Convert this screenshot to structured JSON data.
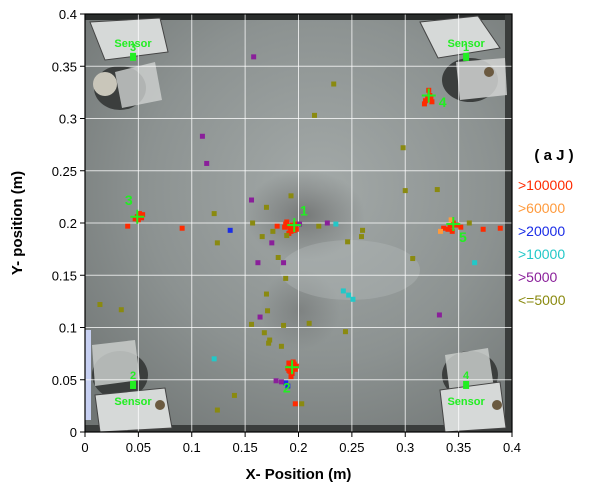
{
  "chart_data": {
    "type": "scatter",
    "xlabel": "X- Position (m)",
    "ylabel": "Y- position (m)",
    "xlim": [
      0,
      0.4
    ],
    "ylim": [
      0,
      0.4
    ],
    "grid": true,
    "x_ticks": [
      "0",
      "0.05",
      "0.1",
      "0.15",
      "0.2",
      "0.25",
      "0.3",
      "0.35",
      "0.4"
    ],
    "y_ticks": [
      "0",
      "0.05",
      "0.1",
      "0.15",
      "0.2",
      "0.25",
      "0.3",
      "0.35",
      "0.4"
    ],
    "legend": {
      "title": "( a J )",
      "placement": "right",
      "entries": [
        {
          "label": ">100000",
          "color": "#ff2a00"
        },
        {
          "label": ">60000",
          "color": "#ff9a3c"
        },
        {
          "label": ">20000",
          "color": "#1a2ce6"
        },
        {
          "label": ">10000",
          "color": "#22c8c8"
        },
        {
          "label": ">5000",
          "color": "#8a1f9a"
        },
        {
          "label": "<=5000",
          "color": "#8a8a10"
        }
      ]
    },
    "sensors": [
      {
        "label": "Sensor",
        "number": "1",
        "x": 0.357,
        "y": 0.359
      },
      {
        "label": "Sensor",
        "number": "2",
        "x": 0.045,
        "y": 0.045
      },
      {
        "label": "Sensor",
        "number": "3",
        "x": 0.045,
        "y": 0.359
      },
      {
        "label": "Sensor",
        "number": "4",
        "x": 0.357,
        "y": 0.045
      }
    ],
    "cluster_labels": [
      {
        "text": "1",
        "x": 0.205,
        "y": 0.207
      },
      {
        "text": "2",
        "x": 0.189,
        "y": 0.038
      },
      {
        "text": "3",
        "x": 0.041,
        "y": 0.217
      },
      {
        "text": "4",
        "x": 0.335,
        "y": 0.311
      },
      {
        "text": "5",
        "x": 0.354,
        "y": 0.182
      }
    ],
    "series": [
      {
        "name": ">100000",
        "color": "#ff2a00",
        "points": [
          [
            0.049,
            0.206
          ],
          [
            0.051,
            0.209
          ],
          [
            0.053,
            0.205
          ],
          [
            0.047,
            0.204
          ],
          [
            0.05,
            0.203
          ],
          [
            0.052,
            0.207
          ],
          [
            0.04,
            0.197
          ],
          [
            0.054,
            0.208
          ],
          [
            0.188,
            0.199
          ],
          [
            0.19,
            0.197
          ],
          [
            0.192,
            0.195
          ],
          [
            0.194,
            0.198
          ],
          [
            0.196,
            0.193
          ],
          [
            0.189,
            0.201
          ],
          [
            0.191,
            0.19
          ],
          [
            0.195,
            0.196
          ],
          [
            0.193,
            0.192
          ],
          [
            0.197,
            0.199
          ],
          [
            0.187,
            0.196
          ],
          [
            0.198,
            0.194
          ],
          [
            0.18,
            0.197
          ],
          [
            0.191,
            0.066
          ],
          [
            0.193,
            0.064
          ],
          [
            0.195,
            0.062
          ],
          [
            0.197,
            0.06
          ],
          [
            0.192,
            0.058
          ],
          [
            0.194,
            0.056
          ],
          [
            0.196,
            0.065
          ],
          [
            0.19,
            0.061
          ],
          [
            0.198,
            0.063
          ],
          [
            0.193,
            0.053
          ],
          [
            0.195,
            0.067
          ],
          [
            0.197,
            0.027
          ],
          [
            0.191,
            0.059
          ],
          [
            0.319,
            0.317
          ],
          [
            0.321,
            0.32
          ],
          [
            0.323,
            0.322
          ],
          [
            0.325,
            0.316
          ],
          [
            0.318,
            0.314
          ],
          [
            0.324,
            0.319
          ],
          [
            0.322,
            0.327
          ],
          [
            0.342,
            0.197
          ],
          [
            0.345,
            0.2
          ],
          [
            0.348,
            0.198
          ],
          [
            0.34,
            0.194
          ],
          [
            0.344,
            0.192
          ],
          [
            0.336,
            0.195
          ],
          [
            0.352,
            0.196
          ],
          [
            0.373,
            0.194
          ],
          [
            0.389,
            0.195
          ],
          [
            0.091,
            0.195
          ]
        ]
      },
      {
        "name": ">60000",
        "color": "#ff9a3c",
        "points": [
          [
            0.343,
            0.203
          ],
          [
            0.333,
            0.192
          ]
        ]
      },
      {
        "name": ">20000",
        "color": "#1a2ce6",
        "points": [
          [
            0.136,
            0.193
          ],
          [
            0.188,
            0.047
          ],
          [
            0.19,
            0.044
          ]
        ]
      },
      {
        "name": ">10000",
        "color": "#22c8c8",
        "points": [
          [
            0.242,
            0.135
          ],
          [
            0.247,
            0.131
          ],
          [
            0.251,
            0.127
          ],
          [
            0.235,
            0.199
          ],
          [
            0.365,
            0.162
          ],
          [
            0.121,
            0.07
          ]
        ]
      },
      {
        "name": ">5000",
        "color": "#8a1f9a",
        "points": [
          [
            0.158,
            0.359
          ],
          [
            0.11,
            0.283
          ],
          [
            0.114,
            0.257
          ],
          [
            0.162,
            0.162
          ],
          [
            0.175,
            0.181
          ],
          [
            0.186,
            0.162
          ],
          [
            0.201,
            0.199
          ],
          [
            0.184,
            0.048
          ],
          [
            0.332,
            0.112
          ],
          [
            0.227,
            0.2
          ],
          [
            0.156,
            0.222
          ],
          [
            0.164,
            0.11
          ],
          [
            0.179,
            0.049
          ]
        ]
      },
      {
        "name": "<=5000",
        "color": "#8a8a10",
        "points": [
          [
            0.233,
            0.333
          ],
          [
            0.215,
            0.303
          ],
          [
            0.298,
            0.272
          ],
          [
            0.193,
            0.226
          ],
          [
            0.157,
            0.2
          ],
          [
            0.176,
            0.192
          ],
          [
            0.189,
            0.188
          ],
          [
            0.166,
            0.187
          ],
          [
            0.124,
            0.181
          ],
          [
            0.121,
            0.209
          ],
          [
            0.219,
            0.197
          ],
          [
            0.246,
            0.182
          ],
          [
            0.259,
            0.187
          ],
          [
            0.26,
            0.193
          ],
          [
            0.014,
            0.122
          ],
          [
            0.034,
            0.117
          ],
          [
            0.181,
            0.167
          ],
          [
            0.188,
            0.147
          ],
          [
            0.17,
            0.132
          ],
          [
            0.171,
            0.116
          ],
          [
            0.186,
            0.102
          ],
          [
            0.184,
            0.082
          ],
          [
            0.173,
            0.088
          ],
          [
            0.172,
            0.085
          ],
          [
            0.168,
            0.095
          ],
          [
            0.156,
            0.103
          ],
          [
            0.21,
            0.104
          ],
          [
            0.14,
            0.035
          ],
          [
            0.124,
            0.021
          ],
          [
            0.244,
            0.096
          ],
          [
            0.203,
            0.027
          ],
          [
            0.36,
            0.2
          ],
          [
            0.33,
            0.232
          ],
          [
            0.3,
            0.231
          ],
          [
            0.307,
            0.166
          ],
          [
            0.17,
            0.215
          ]
        ]
      }
    ]
  }
}
